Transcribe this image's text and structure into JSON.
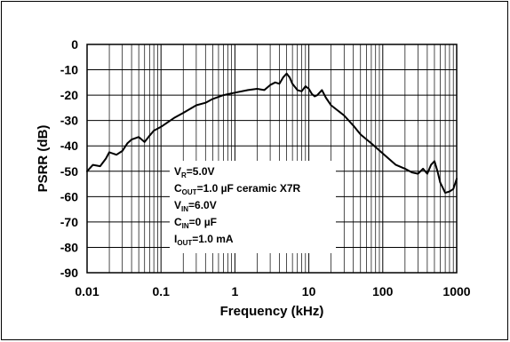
{
  "chart_data": {
    "type": "line",
    "xlabel": "Frequency (kHz)",
    "ylabel": "PSRR (dB)",
    "x_scale": "log",
    "xlim": [
      0.01,
      1000
    ],
    "ylim": [
      -90,
      0
    ],
    "grid": true,
    "x_tick_labels": [
      "0.01",
      "0.1",
      "1",
      "10",
      "100",
      "1000"
    ],
    "y_tick_labels": [
      "0",
      "-10",
      "-20",
      "-30",
      "-40",
      "-50",
      "-60",
      "-70",
      "-80",
      "-90"
    ],
    "annotation": [
      {
        "main": "V",
        "sub": "R",
        "rest": "=5.0V"
      },
      {
        "main": "C",
        "sub": "OUT",
        "rest": "=1.0 µF ceramic X7R"
      },
      {
        "main": "V",
        "sub": "IN",
        "rest": "=6.0V"
      },
      {
        "main": "C",
        "sub": "IN",
        "rest": "=0 µF"
      },
      {
        "main": "I",
        "sub": "OUT",
        "rest": "=1.0 mA"
      }
    ],
    "series": [
      {
        "x": [
          0.01,
          0.012,
          0.015,
          0.018,
          0.02,
          0.025,
          0.03,
          0.035,
          0.04,
          0.05,
          0.06,
          0.07,
          0.08,
          0.1,
          0.15,
          0.2,
          0.3,
          0.4,
          0.5,
          0.7,
          1,
          1.5,
          2,
          2.5,
          3,
          3.5,
          4,
          4.5,
          5,
          5.5,
          6,
          7,
          8,
          9,
          10,
          11,
          12,
          13,
          15,
          17,
          20,
          30,
          40,
          50,
          70,
          100,
          150,
          200,
          250,
          300,
          350,
          400,
          450,
          500,
          550,
          600,
          700,
          800,
          900,
          1000
        ],
        "y": [
          -50,
          -47.5,
          -48,
          -45,
          -42.5,
          -43.5,
          -42,
          -39,
          -37.5,
          -36.5,
          -38.5,
          -36,
          -34,
          -32.5,
          -29,
          -27,
          -24,
          -23,
          -21.5,
          -20,
          -19,
          -18,
          -17.5,
          -18,
          -16,
          -15,
          -15.5,
          -13,
          -11.5,
          -13,
          -15.5,
          -18,
          -18.5,
          -16.5,
          -17.5,
          -19.5,
          -20.5,
          -20,
          -18,
          -21,
          -24,
          -28,
          -32,
          -35.5,
          -39,
          -43,
          -47.5,
          -49,
          -50.5,
          -51,
          -49,
          -51,
          -47.5,
          -46,
          -50,
          -54.5,
          -58.5,
          -58,
          -57,
          -53
        ]
      }
    ]
  }
}
